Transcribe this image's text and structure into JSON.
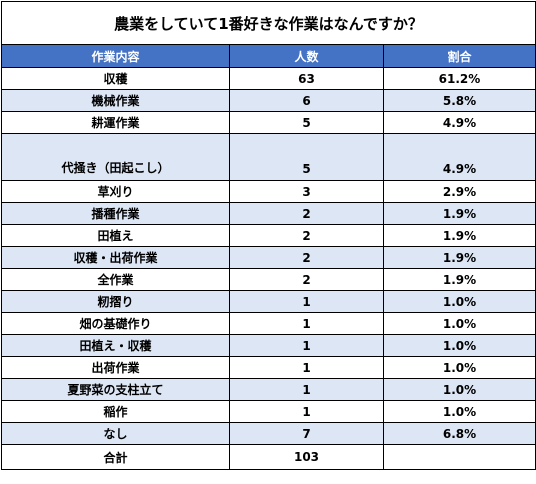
{
  "title": "農業をしていて1番好きな作業はなんですか？",
  "headers": {
    "task": "作業内容",
    "count": "人数",
    "ratio": "割合"
  },
  "rows": [
    {
      "task": "収穫",
      "count": "63",
      "ratio": "61.2%"
    },
    {
      "task": "機械作業",
      "count": "6",
      "ratio": "5.8%"
    },
    {
      "task": "耕運作業",
      "count": "5",
      "ratio": "4.9%"
    },
    {
      "task": "代掻き（田起こし）",
      "count": "5",
      "ratio": "4.9%"
    },
    {
      "task": "草刈り",
      "count": "3",
      "ratio": "2.9%"
    },
    {
      "task": "播種作業",
      "count": "2",
      "ratio": "1.9%"
    },
    {
      "task": "田植え",
      "count": "2",
      "ratio": "1.9%"
    },
    {
      "task": "収穫・出荷作業",
      "count": "2",
      "ratio": "1.9%"
    },
    {
      "task": "全作業",
      "count": "2",
      "ratio": "1.9%"
    },
    {
      "task": "籾摺り",
      "count": "1",
      "ratio": "1.0%"
    },
    {
      "task": "畑の基礎作り",
      "count": "1",
      "ratio": "1.0%"
    },
    {
      "task": "田植え・収穫",
      "count": "1",
      "ratio": "1.0%"
    },
    {
      "task": "出荷作業",
      "count": "1",
      "ratio": "1.0%"
    },
    {
      "task": "夏野菜の支柱立て",
      "count": "1",
      "ratio": "1.0%"
    },
    {
      "task": "稲作",
      "count": "1",
      "ratio": "1.0%"
    },
    {
      "task": "なし",
      "count": "7",
      "ratio": "6.8%"
    }
  ],
  "total": {
    "label": "合計",
    "count": "103",
    "ratio": ""
  },
  "colors": {
    "header_bg": "#4472c4",
    "header_text": "#ffffff",
    "alt_row_bg": "#dde6f4"
  }
}
